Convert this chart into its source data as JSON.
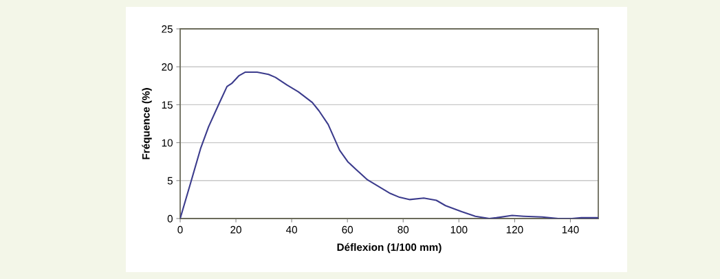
{
  "chart_data": {
    "type": "line",
    "xlabel": "Déflexion (1/100 mm)",
    "ylabel": "Fréquence (%)",
    "series": [
      {
        "color": "#3b3b8c",
        "x": [
          0,
          3.6,
          7.3,
          10.2,
          13.9,
          16.8,
          18.5,
          21,
          23.4,
          27.6,
          31.7,
          34.2,
          38.3,
          42.4,
          47.4,
          49.8,
          53.1,
          57.2,
          60.1,
          63.0,
          67.2,
          71.3,
          75.4,
          78.7,
          82.4,
          87.4,
          91.9,
          95.2,
          101,
          105.9,
          110.9,
          113.4,
          119.1,
          123.3,
          129.9,
          135.6,
          140.6,
          143.9,
          150
        ],
        "values": [
          0,
          4.5,
          9.2,
          12.1,
          15.1,
          17.4,
          17.8,
          18.8,
          19.3,
          19.3,
          19.0,
          18.6,
          17.6,
          16.7,
          15.3,
          14.2,
          12.4,
          9.0,
          7.5,
          6.5,
          5.1,
          4.2,
          3.3,
          2.8,
          2.5,
          2.7,
          2.4,
          1.7,
          0.9,
          0.3,
          0,
          0.1,
          0.4,
          0.3,
          0.2,
          0,
          0,
          0.1,
          0.1
        ]
      }
    ],
    "xlim": [
      0,
      150
    ],
    "xticks": [
      0,
      20,
      40,
      60,
      80,
      100,
      120,
      140
    ],
    "ylim": [
      0,
      25
    ],
    "yticks": [
      0,
      5,
      10,
      15,
      20,
      25
    ],
    "grid": "y",
    "marker": "none",
    "line_style": "solid"
  }
}
